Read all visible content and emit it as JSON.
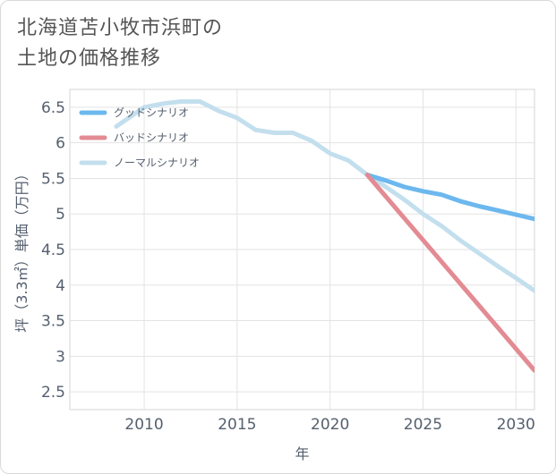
{
  "title_line1": "北海道苫小牧市浜町の",
  "title_line2": "土地の価格推移",
  "chart_data": {
    "type": "line",
    "xlabel": "年",
    "ylabel": "坪（3.3㎡）単価（万円）",
    "xlim": [
      2006,
      2031
    ],
    "ylim": [
      2.25,
      6.75
    ],
    "xticks": [
      2010,
      2015,
      2020,
      2025,
      2030
    ],
    "yticks": [
      2.5,
      3,
      3.5,
      4,
      4.5,
      5,
      5.5,
      6,
      6.5
    ],
    "grid": true,
    "legend_position": "top-left",
    "series": [
      {
        "name": "グッドシナリオ",
        "color": "#6cb8ee",
        "x": [
          2022,
          2023,
          2024,
          2025,
          2026,
          2027,
          2028,
          2029,
          2030,
          2031
        ],
        "y": [
          5.55,
          5.47,
          5.38,
          5.32,
          5.27,
          5.18,
          5.11,
          5.05,
          4.99,
          4.93
        ]
      },
      {
        "name": "バッドシナリオ",
        "color": "#e38b93",
        "x": [
          2022,
          2031
        ],
        "y": [
          5.55,
          2.8
        ]
      },
      {
        "name": "ノーマルシナリオ",
        "color": "#c3dfee",
        "x": [
          2008.5,
          2009,
          2010,
          2011,
          2012,
          2013,
          2014,
          2015,
          2016,
          2017,
          2018,
          2019,
          2020,
          2021,
          2022,
          2023,
          2024,
          2025,
          2026,
          2027,
          2028,
          2029,
          2030,
          2031
        ],
        "y": [
          6.23,
          6.32,
          6.5,
          6.55,
          6.58,
          6.58,
          6.45,
          6.35,
          6.18,
          6.14,
          6.14,
          6.03,
          5.85,
          5.75,
          5.55,
          5.38,
          5.2,
          5.0,
          4.83,
          4.63,
          4.45,
          4.27,
          4.1,
          3.92
        ]
      }
    ]
  }
}
